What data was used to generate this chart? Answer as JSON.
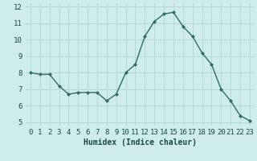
{
  "x": [
    0,
    1,
    2,
    3,
    4,
    5,
    6,
    7,
    8,
    9,
    10,
    11,
    12,
    13,
    14,
    15,
    16,
    17,
    18,
    19,
    20,
    21,
    22,
    23
  ],
  "y": [
    8.0,
    7.9,
    7.9,
    7.2,
    6.7,
    6.8,
    6.8,
    6.8,
    6.3,
    6.7,
    8.0,
    8.5,
    10.2,
    11.1,
    11.55,
    11.65,
    10.8,
    10.2,
    9.2,
    8.5,
    7.0,
    6.3,
    5.4,
    5.1
  ],
  "line_color": "#2e6e60",
  "marker": "D",
  "marker_size": 2.0,
  "background_color": "#cdecea",
  "grid_color": "#b8d8d5",
  "xlabel": "Humidex (Indice chaleur)",
  "xlabel_fontsize": 7,
  "ylim": [
    4.8,
    12.2
  ],
  "xlim": [
    -0.5,
    23.5
  ],
  "yticks": [
    5,
    6,
    7,
    8,
    9,
    10,
    11,
    12
  ],
  "xticks": [
    0,
    1,
    2,
    3,
    4,
    5,
    6,
    7,
    8,
    9,
    10,
    11,
    12,
    13,
    14,
    15,
    16,
    17,
    18,
    19,
    20,
    21,
    22,
    23
  ],
  "tick_fontsize": 6.5,
  "line_width": 1.0
}
